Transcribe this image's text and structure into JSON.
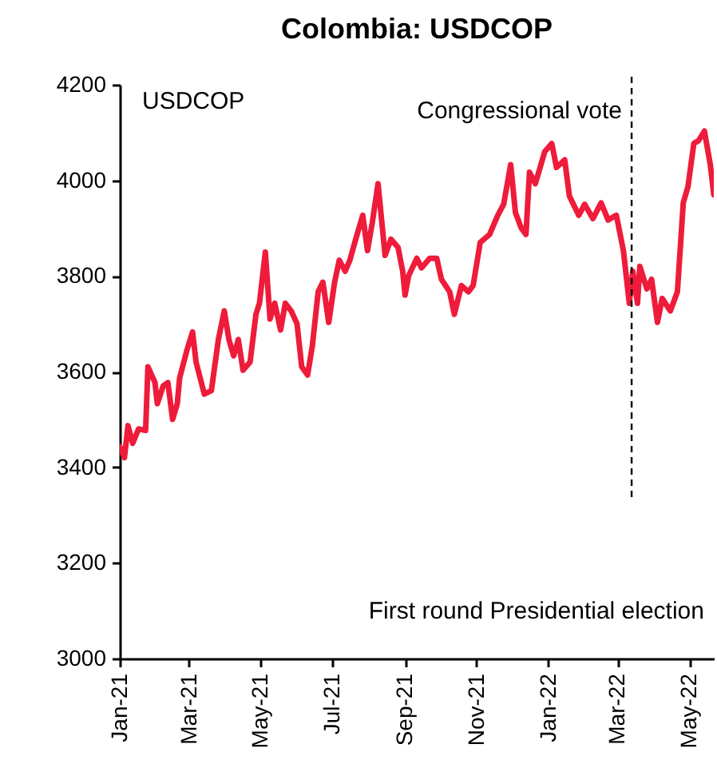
{
  "chart_data": {
    "type": "line",
    "title": "Colombia: USDCOP",
    "x": [
      "2021-01-01",
      "2021-01-05",
      "2021-01-08",
      "2021-01-12",
      "2021-01-17",
      "2021-01-23",
      "2021-01-25",
      "2021-01-31",
      "2021-02-02",
      "2021-02-07",
      "2021-02-11",
      "2021-02-15",
      "2021-02-19",
      "2021-02-21",
      "2021-02-27",
      "2021-03-04",
      "2021-03-07",
      "2021-03-14",
      "2021-03-20",
      "2021-03-26",
      "2021-03-31",
      "2021-04-04",
      "2021-04-08",
      "2021-04-12",
      "2021-04-16",
      "2021-04-22",
      "2021-04-27",
      "2021-04-30",
      "2021-05-05",
      "2021-05-09",
      "2021-05-13",
      "2021-05-18",
      "2021-05-22",
      "2021-05-27",
      "2021-06-01",
      "2021-06-05",
      "2021-06-10",
      "2021-06-14",
      "2021-06-19",
      "2021-06-23",
      "2021-06-28",
      "2021-07-03",
      "2021-07-07",
      "2021-07-12",
      "2021-07-16",
      "2021-07-21",
      "2021-07-27",
      "2021-07-31",
      "2021-08-04",
      "2021-08-09",
      "2021-08-15",
      "2021-08-20",
      "2021-08-26",
      "2021-08-30",
      "2021-09-01",
      "2021-09-04",
      "2021-09-11",
      "2021-09-15",
      "2021-09-22",
      "2021-09-28",
      "2021-10-02",
      "2021-10-09",
      "2021-10-13",
      "2021-10-19",
      "2021-10-25",
      "2021-10-29",
      "2021-11-04",
      "2021-11-12",
      "2021-11-19",
      "2021-11-24",
      "2021-11-30",
      "2021-12-04",
      "2021-12-09",
      "2021-12-13",
      "2021-12-16",
      "2021-12-21",
      "2021-12-29",
      "2022-01-04",
      "2022-01-08",
      "2022-01-15",
      "2022-01-19",
      "2022-01-27",
      "2022-02-01",
      "2022-02-08",
      "2022-02-15",
      "2022-02-21",
      "2022-02-28",
      "2022-03-06",
      "2022-03-11",
      "2022-03-14",
      "2022-03-18",
      "2022-03-20",
      "2022-03-26",
      "2022-03-30",
      "2022-04-04",
      "2022-04-08",
      "2022-04-15",
      "2022-04-21",
      "2022-04-26",
      "2022-04-30",
      "2022-05-05",
      "2022-05-09",
      "2022-05-14",
      "2022-05-19",
      "2022-05-22"
    ],
    "series": [
      {
        "color": "#ee1c3a",
        "values": [
          3443,
          3420,
          3487,
          3450,
          3480,
          3477,
          3610,
          3577,
          3533,
          3570,
          3577,
          3500,
          3533,
          3587,
          3643,
          3683,
          3620,
          3553,
          3560,
          3667,
          3727,
          3667,
          3633,
          3667,
          3603,
          3620,
          3720,
          3743,
          3850,
          3710,
          3743,
          3687,
          3743,
          3727,
          3700,
          3610,
          3593,
          3653,
          3767,
          3787,
          3703,
          3787,
          3833,
          3810,
          3833,
          3877,
          3927,
          3853,
          3910,
          3993,
          3843,
          3877,
          3860,
          3810,
          3760,
          3800,
          3837,
          3817,
          3837,
          3837,
          3793,
          3767,
          3720,
          3780,
          3767,
          3780,
          3870,
          3887,
          3927,
          3950,
          4033,
          3933,
          3900,
          3887,
          4017,
          3993,
          4060,
          4077,
          4027,
          4043,
          3967,
          3927,
          3950,
          3920,
          3953,
          3917,
          3927,
          3853,
          3743,
          3810,
          3743,
          3820,
          3773,
          3793,
          3703,
          3753,
          3727,
          3767,
          3953,
          3987,
          4077,
          4083,
          4103,
          4033,
          3970
        ]
      }
    ],
    "xlim": [
      "2021-01-01",
      "2022-05-22"
    ],
    "xticks": [
      {
        "value": "2021-01-01",
        "label": "Jan-21"
      },
      {
        "value": "2021-03-01",
        "label": "Mar-21"
      },
      {
        "value": "2021-05-01",
        "label": "May-21"
      },
      {
        "value": "2021-07-01",
        "label": "Jul-21"
      },
      {
        "value": "2021-09-01",
        "label": "Sep-21"
      },
      {
        "value": "2021-11-01",
        "label": "Nov-21"
      },
      {
        "value": "2022-01-01",
        "label": "Jan-22"
      },
      {
        "value": "2022-03-01",
        "label": "Mar-22"
      },
      {
        "value": "2022-05-01",
        "label": "May-22"
      }
    ],
    "ylim": [
      3000,
      4200
    ],
    "yticks": [
      3000,
      3200,
      3400,
      3600,
      3800,
      4000,
      4200
    ],
    "ref_lines": [
      {
        "axis": "x",
        "value": "2022-03-13",
        "label": "Congressional vote",
        "color": "#000000",
        "line_style": "dashed"
      }
    ],
    "annotations": [
      "USDCOP",
      "First round Presidential election"
    ],
    "grid": false
  }
}
